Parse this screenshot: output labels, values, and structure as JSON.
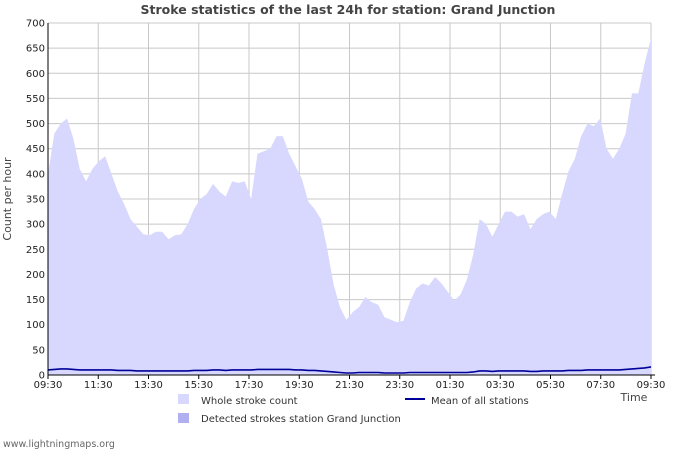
{
  "chart_data": {
    "type": "area",
    "title": "Stroke statistics of the last 24h for station: Grand Junction",
    "ylabel": "Count per hour",
    "xlabel": "Time",
    "ylim": [
      0,
      700
    ],
    "yticks": [
      0,
      50,
      100,
      150,
      200,
      250,
      300,
      350,
      400,
      450,
      500,
      550,
      600,
      650,
      700
    ],
    "xticks": [
      "09:30",
      "11:30",
      "13:30",
      "15:30",
      "17:30",
      "19:30",
      "21:30",
      "23:30",
      "01:30",
      "03:30",
      "05:30",
      "07:30",
      "09:30"
    ],
    "grid": true,
    "series": [
      {
        "name": "Whole stroke count",
        "color": "#d8d8ff",
        "values": [
          400,
          480,
          500,
          510,
          470,
          410,
          385,
          410,
          425,
          435,
          400,
          365,
          340,
          310,
          295,
          280,
          278,
          285,
          285,
          270,
          278,
          280,
          300,
          330,
          350,
          360,
          380,
          365,
          355,
          385,
          382,
          385,
          350,
          440,
          445,
          450,
          475,
          475,
          440,
          415,
          390,
          345,
          330,
          310,
          250,
          180,
          135,
          110,
          125,
          135,
          155,
          145,
          140,
          115,
          110,
          105,
          108,
          145,
          172,
          182,
          178,
          195,
          182,
          165,
          148,
          160,
          190,
          240,
          310,
          300,
          275,
          300,
          325,
          325,
          315,
          320,
          290,
          310,
          320,
          325,
          310,
          360,
          405,
          430,
          475,
          500,
          495,
          510,
          450,
          430,
          450,
          480,
          560,
          560,
          620,
          670
        ]
      },
      {
        "name": "Detected strokes station Grand Junction",
        "color": "#b0b0f0",
        "values": [
          0,
          0,
          0,
          0,
          0,
          0,
          0,
          0,
          0,
          0,
          0,
          0,
          0,
          0,
          0,
          0,
          0,
          0,
          0,
          0,
          0,
          0,
          0,
          0,
          0,
          0,
          0,
          0,
          0,
          0,
          0,
          0,
          0,
          0,
          0,
          0,
          0,
          0,
          0,
          0,
          0,
          0,
          0,
          0,
          0,
          0,
          0,
          0,
          0,
          0,
          0,
          0,
          0,
          0,
          0,
          0,
          0,
          0,
          0,
          0,
          0,
          0,
          0,
          0,
          0,
          0,
          0,
          0,
          0,
          0,
          0,
          0,
          0,
          0,
          0,
          0,
          0,
          0,
          0,
          0,
          0,
          0,
          0,
          0,
          0,
          0,
          0,
          0,
          0,
          0,
          0,
          0,
          0,
          0,
          0,
          0
        ]
      },
      {
        "name": "Mean of all stations",
        "color": "#000099",
        "values": [
          10,
          11,
          12,
          12,
          11,
          10,
          10,
          10,
          10,
          10,
          10,
          9,
          9,
          9,
          8,
          8,
          8,
          8,
          8,
          8,
          8,
          8,
          8,
          9,
          9,
          9,
          10,
          10,
          9,
          10,
          10,
          10,
          10,
          11,
          11,
          11,
          11,
          11,
          11,
          10,
          10,
          9,
          9,
          8,
          7,
          6,
          5,
          4,
          4,
          5,
          5,
          5,
          5,
          4,
          4,
          4,
          4,
          5,
          5,
          5,
          5,
          5,
          5,
          5,
          5,
          5,
          5,
          6,
          8,
          8,
          7,
          8,
          8,
          8,
          8,
          8,
          7,
          7,
          8,
          8,
          8,
          8,
          9,
          9,
          9,
          10,
          10,
          10,
          10,
          10,
          10,
          11,
          12,
          13,
          14,
          16
        ]
      }
    ],
    "legend": [
      {
        "label": "Whole stroke count",
        "kind": "box",
        "color": "#d8d8ff"
      },
      {
        "label": "Mean of all stations",
        "kind": "line",
        "color": "#000099"
      },
      {
        "label": "Detected strokes station Grand Junction",
        "kind": "box",
        "color": "#b0b0f0"
      }
    ]
  },
  "footer": "www.lightningmaps.org"
}
